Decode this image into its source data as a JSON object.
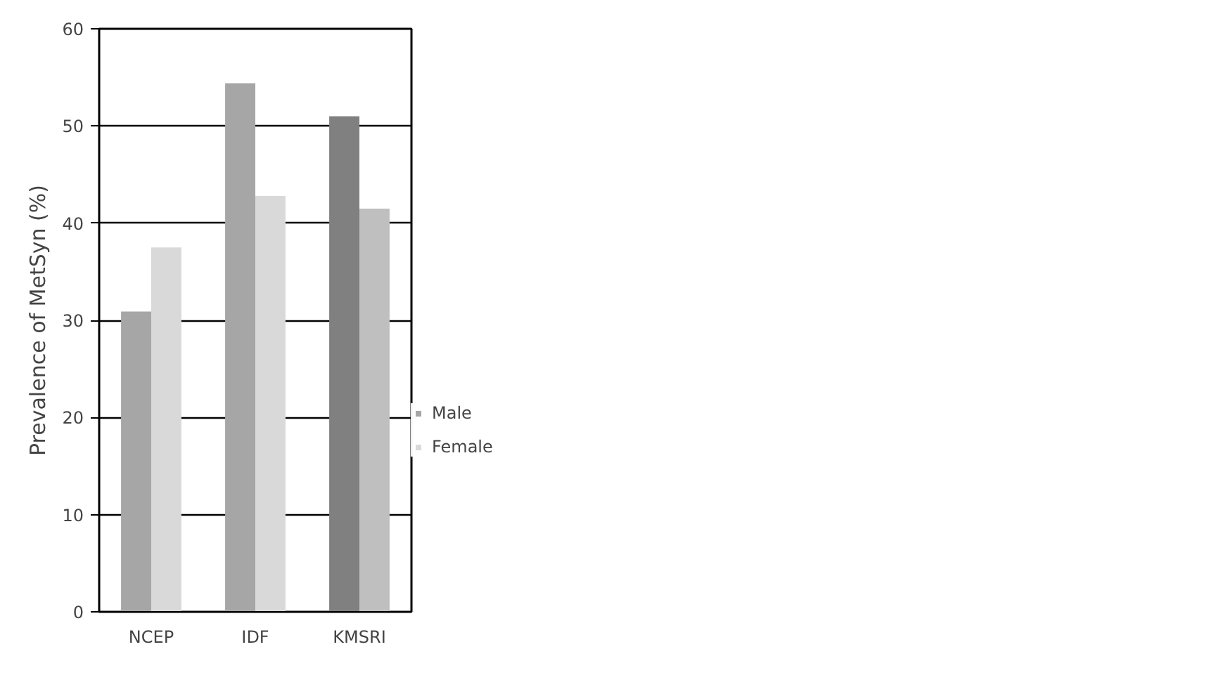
{
  "chart_data": {
    "type": "bar",
    "ylabel": "Prevalence of MetSyn (%)",
    "categories": [
      "NCEP",
      "IDF",
      "KMSRI"
    ],
    "series": [
      {
        "name": "Male",
        "color": "#a6a6a6",
        "colors": [
          "#a6a6a6",
          "#a6a6a6",
          "#808080"
        ],
        "values": [
          30.9,
          54.4,
          51.0
        ]
      },
      {
        "name": "Female",
        "color": "#d9d9d9",
        "colors": [
          "#d9d9d9",
          "#d9d9d9",
          "#bfbfbf"
        ],
        "values": [
          37.5,
          42.8,
          41.5
        ]
      }
    ],
    "ylim": [
      0,
      60
    ],
    "yticks": [
      0,
      10,
      20,
      30,
      40,
      50,
      60
    ],
    "grid": "y",
    "legend": "right"
  }
}
